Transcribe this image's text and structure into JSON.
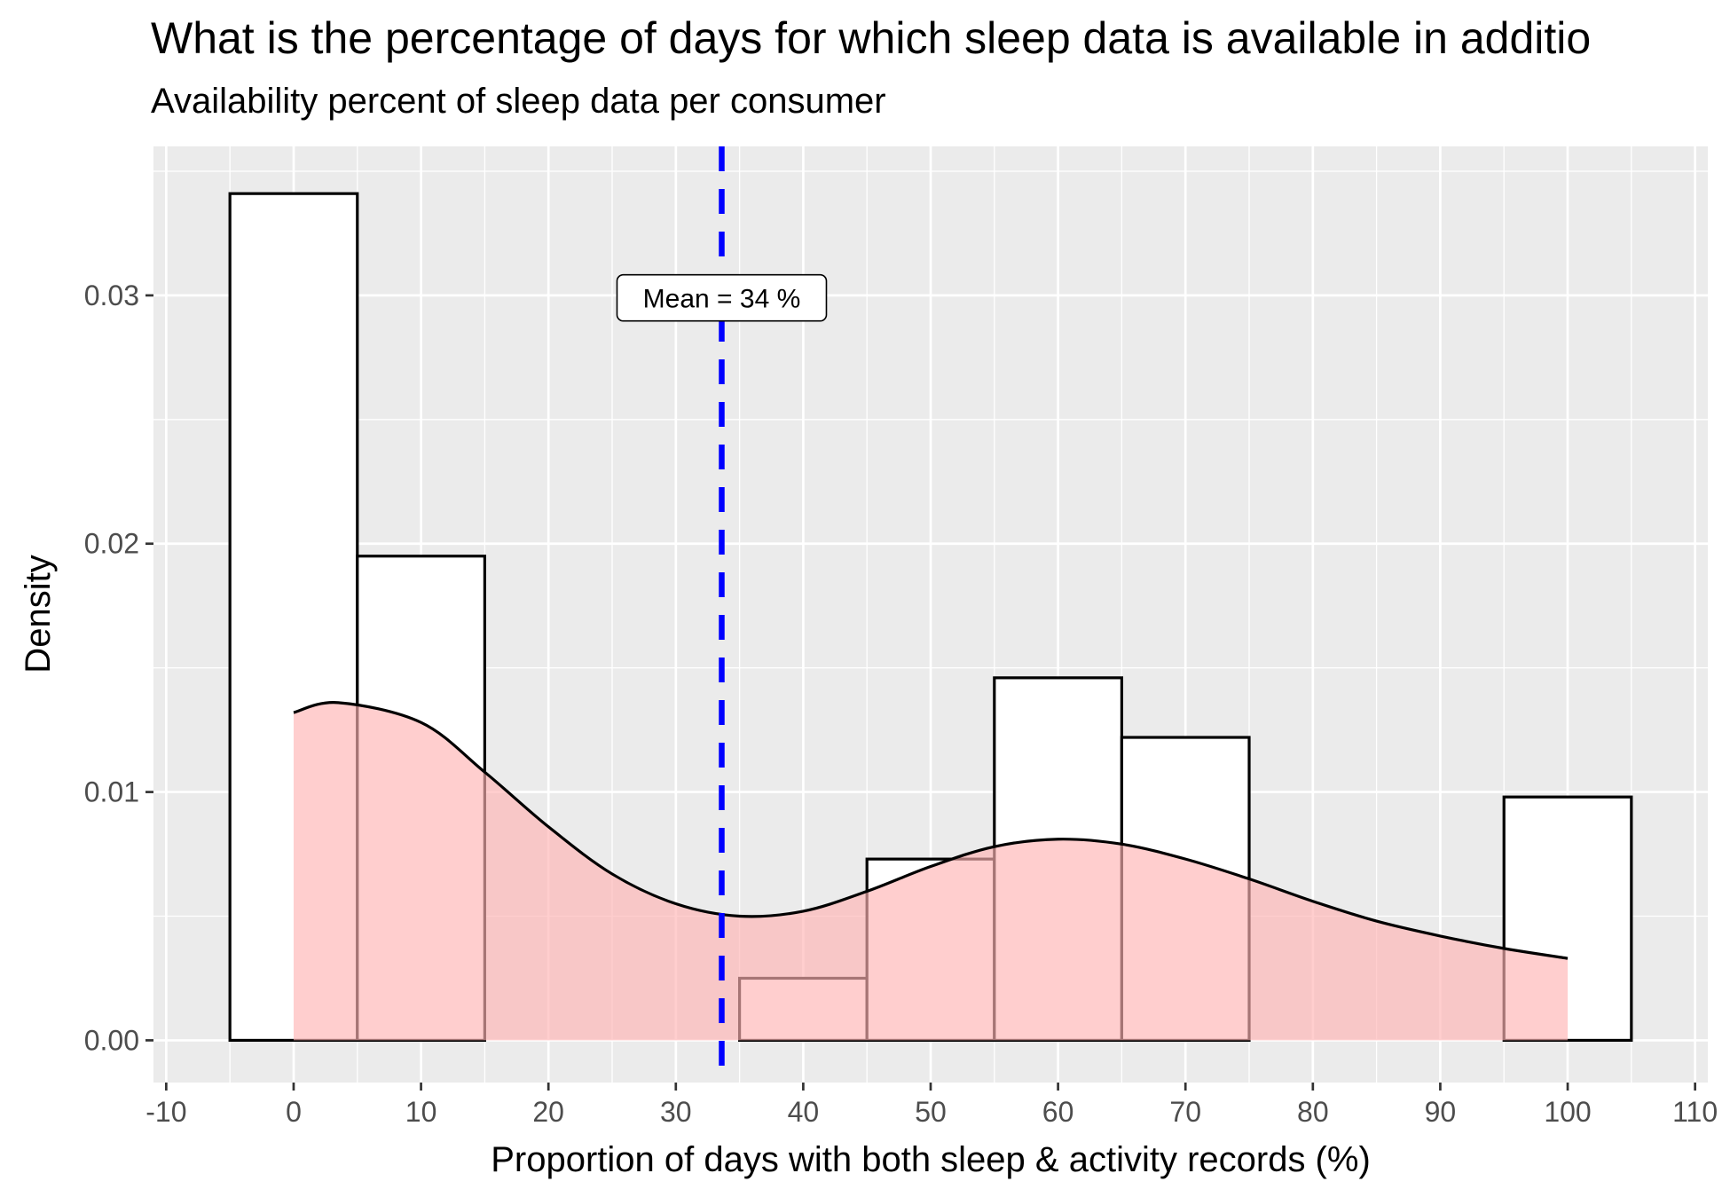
{
  "chart_data": {
    "type": "histogram",
    "title": "What is the percentage of days for which sleep data is available in additio",
    "subtitle": "Availability percent of sleep data per consumer",
    "xlabel": "Proportion of days with both sleep & activity records (%)",
    "ylabel": "Density",
    "xlim": [
      -11,
      111
    ],
    "ylim": [
      -0.0017,
      0.036
    ],
    "x_ticks": [
      -10,
      0,
      10,
      20,
      30,
      40,
      50,
      60,
      70,
      80,
      90,
      100,
      110
    ],
    "x_tick_labels": [
      "-10",
      "0",
      "10",
      "20",
      "30",
      "40",
      "50",
      "60",
      "70",
      "80",
      "90",
      "100",
      "110"
    ],
    "y_ticks": [
      0,
      0.01,
      0.02,
      0.03
    ],
    "y_tick_labels": [
      "0.00",
      "0.01",
      "0.02",
      "0.03"
    ],
    "grid": true,
    "bins": [
      {
        "x0": -5,
        "x1": 5,
        "density": 0.0341
      },
      {
        "x0": 5,
        "x1": 15,
        "density": 0.0195
      },
      {
        "x0": 15,
        "x1": 25,
        "density": 0.0
      },
      {
        "x0": 25,
        "x1": 35,
        "density": 0.0
      },
      {
        "x0": 35,
        "x1": 45,
        "density": 0.0025
      },
      {
        "x0": 45,
        "x1": 55,
        "density": 0.0073
      },
      {
        "x0": 55,
        "x1": 65,
        "density": 0.0146
      },
      {
        "x0": 65,
        "x1": 75,
        "density": 0.0122
      },
      {
        "x0": 75,
        "x1": 85,
        "density": 0.0
      },
      {
        "x0": 85,
        "x1": 95,
        "density": 0.0
      },
      {
        "x0": 95,
        "x1": 105,
        "density": 0.0098
      }
    ],
    "density_curve": {
      "x": [
        0,
        3.5,
        10,
        15,
        20,
        25,
        30,
        35,
        40,
        45,
        50,
        55,
        60,
        65,
        70,
        75,
        80,
        85,
        90,
        95,
        100
      ],
      "y": [
        0.0132,
        0.0136,
        0.0128,
        0.0108,
        0.0086,
        0.0067,
        0.0055,
        0.005,
        0.0052,
        0.006,
        0.007,
        0.0078,
        0.0081,
        0.0079,
        0.0073,
        0.0065,
        0.0056,
        0.0048,
        0.0042,
        0.0037,
        0.0033
      ]
    },
    "mean_line": {
      "x": 33.6,
      "label": "Mean = 34 %",
      "label_y": 0.0299
    },
    "colors": {
      "panel_bg": "#ebebeb",
      "grid": "#ffffff",
      "bar_fill": "#ffffff",
      "bar_stroke": "#000000",
      "density_fill": "#ffb3b3",
      "mean_line": "#0000ff"
    }
  }
}
